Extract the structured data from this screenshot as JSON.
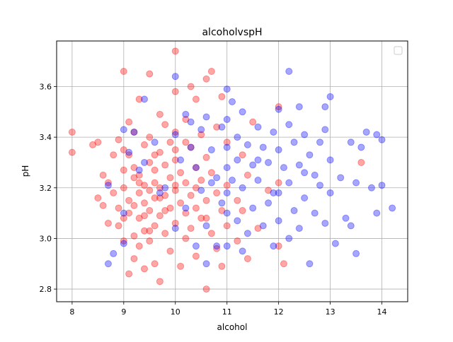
{
  "chart_data": {
    "type": "scatter",
    "title": "alcoholvspH",
    "xlabel": "alcohol",
    "ylabel": "pH",
    "xlim": [
      7.7,
      14.5
    ],
    "ylim": [
      2.75,
      3.78
    ],
    "xticks": [
      8,
      9,
      10,
      11,
      12,
      13,
      14
    ],
    "yticks": [
      2.8,
      3.0,
      3.2,
      3.4,
      3.6
    ],
    "xtick_labels": [
      "8",
      "9",
      "10",
      "11",
      "12",
      "13",
      "14"
    ],
    "ytick_labels": [
      "2.8",
      "3.0",
      "3.2",
      "3.4",
      "3.6"
    ],
    "grid": true,
    "legend": "top-right (empty)",
    "series": [
      {
        "color": "#ff0000",
        "alpha": 0.35,
        "points": [
          [
            8.0,
            3.42
          ],
          [
            8.0,
            3.34
          ],
          [
            8.4,
            3.37
          ],
          [
            8.5,
            3.16
          ],
          [
            8.5,
            3.38
          ],
          [
            8.6,
            3.25
          ],
          [
            8.6,
            3.13
          ],
          [
            8.7,
            3.06
          ],
          [
            8.7,
            3.22
          ],
          [
            8.8,
            3.33
          ],
          [
            8.8,
            3.18
          ],
          [
            8.9,
            3.05
          ],
          [
            8.9,
            3.39
          ],
          [
            8.9,
            3.12
          ],
          [
            9.0,
            3.66
          ],
          [
            9.0,
            3.27
          ],
          [
            9.0,
            3.2
          ],
          [
            9.0,
            3.08
          ],
          [
            9.0,
            2.99
          ],
          [
            9.1,
            3.33
          ],
          [
            9.1,
            3.46
          ],
          [
            9.1,
            3.15
          ],
          [
            9.1,
            2.86
          ],
          [
            9.2,
            3.24
          ],
          [
            9.2,
            3.13
          ],
          [
            9.2,
            3.01
          ],
          [
            9.2,
            3.42
          ],
          [
            9.2,
            2.92
          ],
          [
            9.3,
            3.55
          ],
          [
            9.3,
            3.25
          ],
          [
            9.3,
            3.18
          ],
          [
            9.3,
            3.08
          ],
          [
            9.3,
            2.97
          ],
          [
            9.4,
            3.37
          ],
          [
            9.4,
            3.21
          ],
          [
            9.4,
            3.14
          ],
          [
            9.4,
            3.03
          ],
          [
            9.4,
            2.88
          ],
          [
            9.5,
            3.65
          ],
          [
            9.5,
            3.3
          ],
          [
            9.5,
            3.19
          ],
          [
            9.5,
            3.11
          ],
          [
            9.5,
            2.99
          ],
          [
            9.5,
            3.4
          ],
          [
            9.6,
            3.27
          ],
          [
            9.6,
            3.16
          ],
          [
            9.6,
            3.05
          ],
          [
            9.6,
            2.9
          ],
          [
            9.6,
            3.22
          ],
          [
            9.7,
            3.49
          ],
          [
            9.7,
            3.34
          ],
          [
            9.7,
            3.2
          ],
          [
            9.7,
            3.09
          ],
          [
            9.7,
            2.83
          ],
          [
            9.8,
            3.29
          ],
          [
            9.8,
            3.17
          ],
          [
            9.8,
            3.02
          ],
          [
            9.8,
            3.45
          ],
          [
            9.9,
            3.38
          ],
          [
            9.9,
            3.24
          ],
          [
            9.9,
            3.12
          ],
          [
            9.9,
            2.95
          ],
          [
            10.0,
            3.74
          ],
          [
            10.0,
            3.58
          ],
          [
            10.0,
            3.42
          ],
          [
            10.0,
            3.31
          ],
          [
            10.0,
            3.19
          ],
          [
            10.0,
            3.06
          ],
          [
            10.0,
            3.35
          ],
          [
            10.1,
            3.26
          ],
          [
            10.1,
            3.14
          ],
          [
            10.1,
            2.89
          ],
          [
            10.2,
            3.47
          ],
          [
            10.2,
            3.22
          ],
          [
            10.2,
            3.1
          ],
          [
            10.2,
            3.0
          ],
          [
            10.3,
            3.6
          ],
          [
            10.3,
            3.36
          ],
          [
            10.3,
            3.17
          ],
          [
            10.3,
            3.04
          ],
          [
            10.4,
            3.55
          ],
          [
            10.4,
            3.28
          ],
          [
            10.4,
            3.12
          ],
          [
            10.4,
            2.93
          ],
          [
            10.5,
            3.41
          ],
          [
            10.5,
            3.23
          ],
          [
            10.5,
            3.08
          ],
          [
            10.6,
            3.63
          ],
          [
            10.6,
            3.32
          ],
          [
            10.6,
            3.15
          ],
          [
            10.6,
            2.8
          ],
          [
            10.7,
            3.66
          ],
          [
            10.7,
            3.26
          ],
          [
            10.7,
            3.02
          ],
          [
            10.8,
            3.44
          ],
          [
            10.8,
            3.18
          ],
          [
            10.8,
            2.96
          ],
          [
            10.9,
            3.56
          ],
          [
            10.9,
            3.11
          ],
          [
            10.9,
            2.89
          ],
          [
            11.0,
            3.38
          ],
          [
            11.0,
            3.21
          ],
          [
            11.0,
            3.05
          ],
          [
            11.2,
            3.15
          ],
          [
            11.2,
            2.99
          ],
          [
            11.3,
            3.33
          ],
          [
            11.3,
            3.11
          ],
          [
            11.4,
            3.25
          ],
          [
            11.4,
            2.92
          ],
          [
            11.5,
            3.46
          ],
          [
            11.6,
            3.04
          ],
          [
            11.8,
            3.19
          ],
          [
            12.0,
            3.52
          ],
          [
            12.0,
            2.97
          ],
          [
            12.1,
            2.9
          ],
          [
            12.0,
            3.22
          ],
          [
            13.6,
            3.3
          ],
          [
            9.0,
            3.35
          ],
          [
            9.2,
            3.28
          ],
          [
            9.4,
            3.09
          ],
          [
            9.6,
            3.33
          ],
          [
            9.8,
            3.11
          ],
          [
            10.0,
            3.21
          ],
          [
            10.2,
            3.38
          ],
          [
            10.4,
            3.2
          ],
          [
            10.6,
            3.08
          ],
          [
            9.1,
            3.1
          ],
          [
            9.3,
            3.22
          ],
          [
            9.5,
            3.03
          ],
          [
            9.7,
            3.16
          ]
        ]
      },
      {
        "color": "#0000ff",
        "alpha": 0.35,
        "points": [
          [
            8.7,
            3.21
          ],
          [
            8.7,
            2.9
          ],
          [
            8.8,
            2.94
          ],
          [
            9.0,
            3.43
          ],
          [
            9.0,
            3.1
          ],
          [
            9.0,
            2.98
          ],
          [
            9.1,
            3.34
          ],
          [
            9.2,
            3.42
          ],
          [
            9.3,
            3.27
          ],
          [
            9.4,
            3.3
          ],
          [
            9.4,
            3.55
          ],
          [
            9.6,
            3.38
          ],
          [
            9.8,
            3.2
          ],
          [
            10.0,
            3.64
          ],
          [
            10.0,
            3.41
          ],
          [
            10.0,
            3.04
          ],
          [
            10.1,
            3.31
          ],
          [
            10.2,
            3.49
          ],
          [
            10.2,
            3.12
          ],
          [
            10.3,
            3.46
          ],
          [
            10.4,
            3.28
          ],
          [
            10.4,
            2.97
          ],
          [
            10.5,
            3.43
          ],
          [
            10.5,
            3.19
          ],
          [
            10.6,
            3.48
          ],
          [
            10.6,
            3.05
          ],
          [
            10.6,
            2.9
          ],
          [
            10.7,
            3.35
          ],
          [
            10.8,
            3.24
          ],
          [
            10.8,
            2.97
          ],
          [
            10.9,
            3.44
          ],
          [
            10.9,
            3.14
          ],
          [
            11.0,
            3.59
          ],
          [
            11.0,
            3.47
          ],
          [
            11.0,
            3.36
          ],
          [
            11.0,
            3.28
          ],
          [
            11.0,
            3.18
          ],
          [
            11.0,
            3.1
          ],
          [
            11.0,
            2.97
          ],
          [
            11.1,
            3.54
          ],
          [
            11.1,
            3.23
          ],
          [
            11.2,
            3.4
          ],
          [
            11.2,
            3.31
          ],
          [
            11.2,
            3.07
          ],
          [
            11.3,
            3.5
          ],
          [
            11.3,
            3.2
          ],
          [
            11.3,
            2.95
          ],
          [
            11.4,
            3.37
          ],
          [
            11.4,
            3.02
          ],
          [
            11.5,
            3.29
          ],
          [
            11.5,
            3.12
          ],
          [
            11.6,
            3.44
          ],
          [
            11.6,
            3.23
          ],
          [
            11.7,
            3.36
          ],
          [
            11.7,
            3.05
          ],
          [
            11.8,
            3.3
          ],
          [
            11.8,
            3.14
          ],
          [
            11.9,
            3.42
          ],
          [
            11.9,
            2.97
          ],
          [
            12.0,
            3.51
          ],
          [
            12.0,
            3.35
          ],
          [
            12.0,
            3.18
          ],
          [
            12.0,
            3.07
          ],
          [
            12.1,
            3.28
          ],
          [
            12.2,
            3.66
          ],
          [
            12.2,
            3.45
          ],
          [
            12.2,
            3.22
          ],
          [
            12.2,
            3.0
          ],
          [
            12.3,
            3.38
          ],
          [
            12.3,
            3.11
          ],
          [
            12.4,
            3.52
          ],
          [
            12.4,
            3.29
          ],
          [
            12.4,
            3.04
          ],
          [
            12.5,
            3.41
          ],
          [
            12.5,
            3.16
          ],
          [
            12.6,
            3.33
          ],
          [
            12.6,
            2.9
          ],
          [
            12.7,
            3.25
          ],
          [
            12.7,
            3.1
          ],
          [
            12.8,
            3.38
          ],
          [
            12.8,
            3.21
          ],
          [
            12.9,
            3.43
          ],
          [
            12.9,
            3.06
          ],
          [
            13.0,
            3.56
          ],
          [
            13.0,
            3.31
          ],
          [
            13.0,
            3.18
          ],
          [
            13.1,
            2.98
          ],
          [
            13.2,
            3.24
          ],
          [
            13.3,
            3.08
          ],
          [
            13.4,
            3.38
          ],
          [
            13.4,
            3.05
          ],
          [
            13.5,
            2.94
          ],
          [
            13.5,
            3.22
          ],
          [
            13.6,
            3.36
          ],
          [
            13.7,
            3.42
          ],
          [
            13.8,
            3.2
          ],
          [
            13.9,
            3.41
          ],
          [
            14.0,
            3.39
          ],
          [
            14.0,
            3.21
          ],
          [
            14.2,
            3.12
          ],
          [
            13.9,
            3.1
          ],
          [
            12.9,
            3.52
          ],
          [
            11.6,
            3.31
          ],
          [
            11.9,
            3.18
          ],
          [
            12.5,
            3.26
          ],
          [
            10.3,
            3.36
          ],
          [
            10.7,
            3.22
          ],
          [
            9.7,
            3.18
          ]
        ]
      }
    ]
  }
}
